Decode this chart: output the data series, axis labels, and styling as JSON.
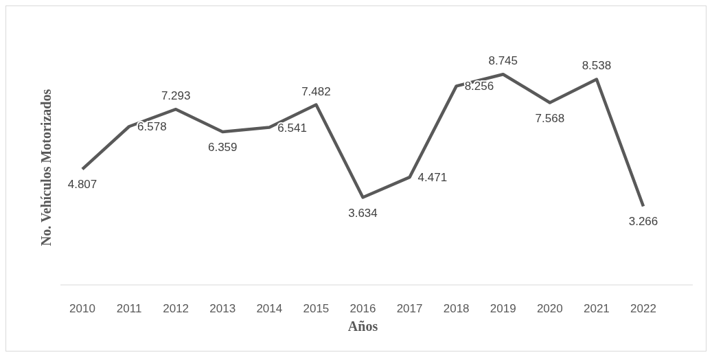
{
  "chart_data": {
    "type": "line",
    "xlabel": "Años",
    "ylabel": "No. Vehículos Motorizados",
    "categories": [
      "2010",
      "2011",
      "2012",
      "2013",
      "2014",
      "2015",
      "2016",
      "2017",
      "2018",
      "2019",
      "2020",
      "2021",
      "2022"
    ],
    "series": [
      {
        "color": "#595959",
        "values": [
          4.807,
          6.578,
          7.293,
          6.359,
          6.541,
          7.482,
          3.634,
          4.471,
          8.256,
          8.745,
          7.568,
          8.538,
          3.266
        ]
      }
    ],
    "data_labels": true,
    "marker": "none",
    "line_style": "solid"
  }
}
